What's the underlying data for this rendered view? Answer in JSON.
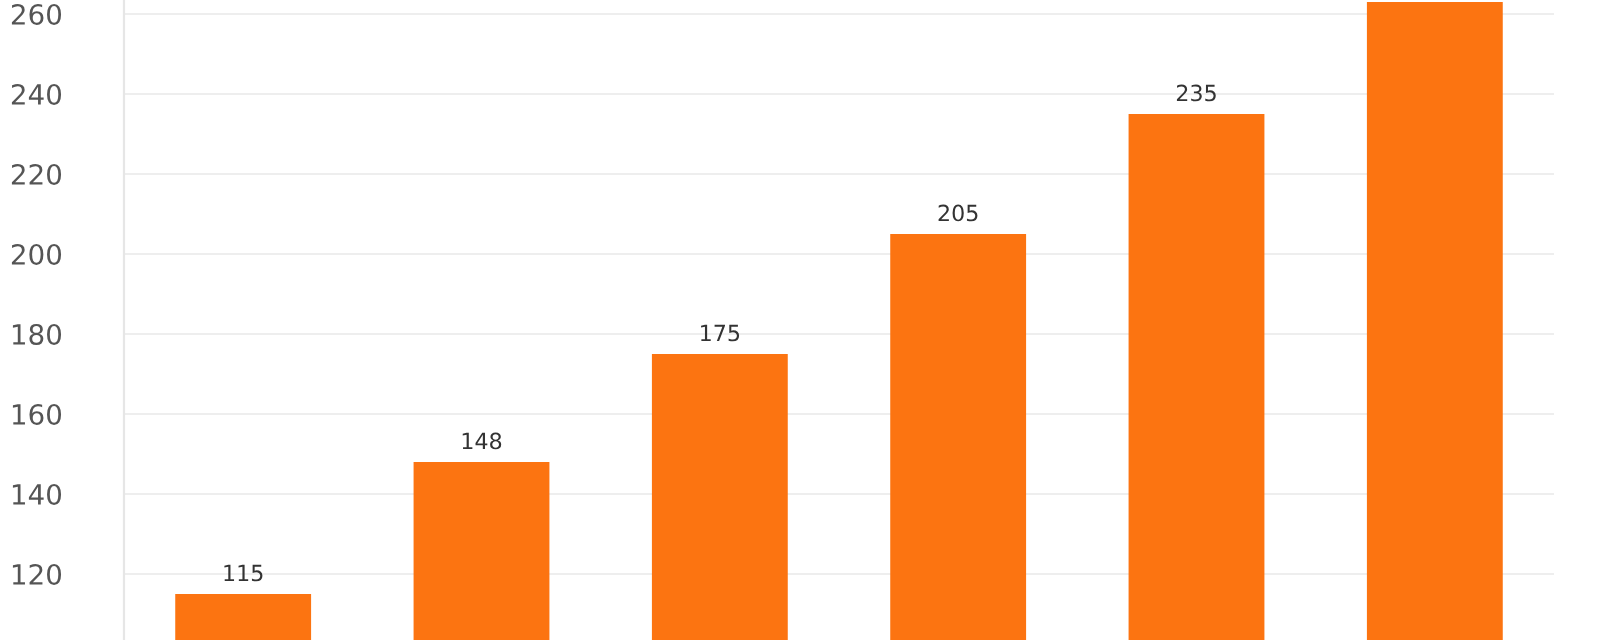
{
  "chart_data": {
    "type": "bar",
    "categories": [
      null,
      null,
      null,
      null,
      null,
      null
    ],
    "values": [
      115,
      148,
      175,
      205,
      235,
      263
    ],
    "value_labels": [
      "115",
      "148",
      "175",
      "205",
      "235",
      null
    ],
    "color": "#fc7411",
    "ylim": [
      103.5,
      263.5
    ],
    "yticks": [
      120,
      140,
      160,
      180,
      200,
      220,
      240,
      260
    ],
    "grid": "y"
  }
}
